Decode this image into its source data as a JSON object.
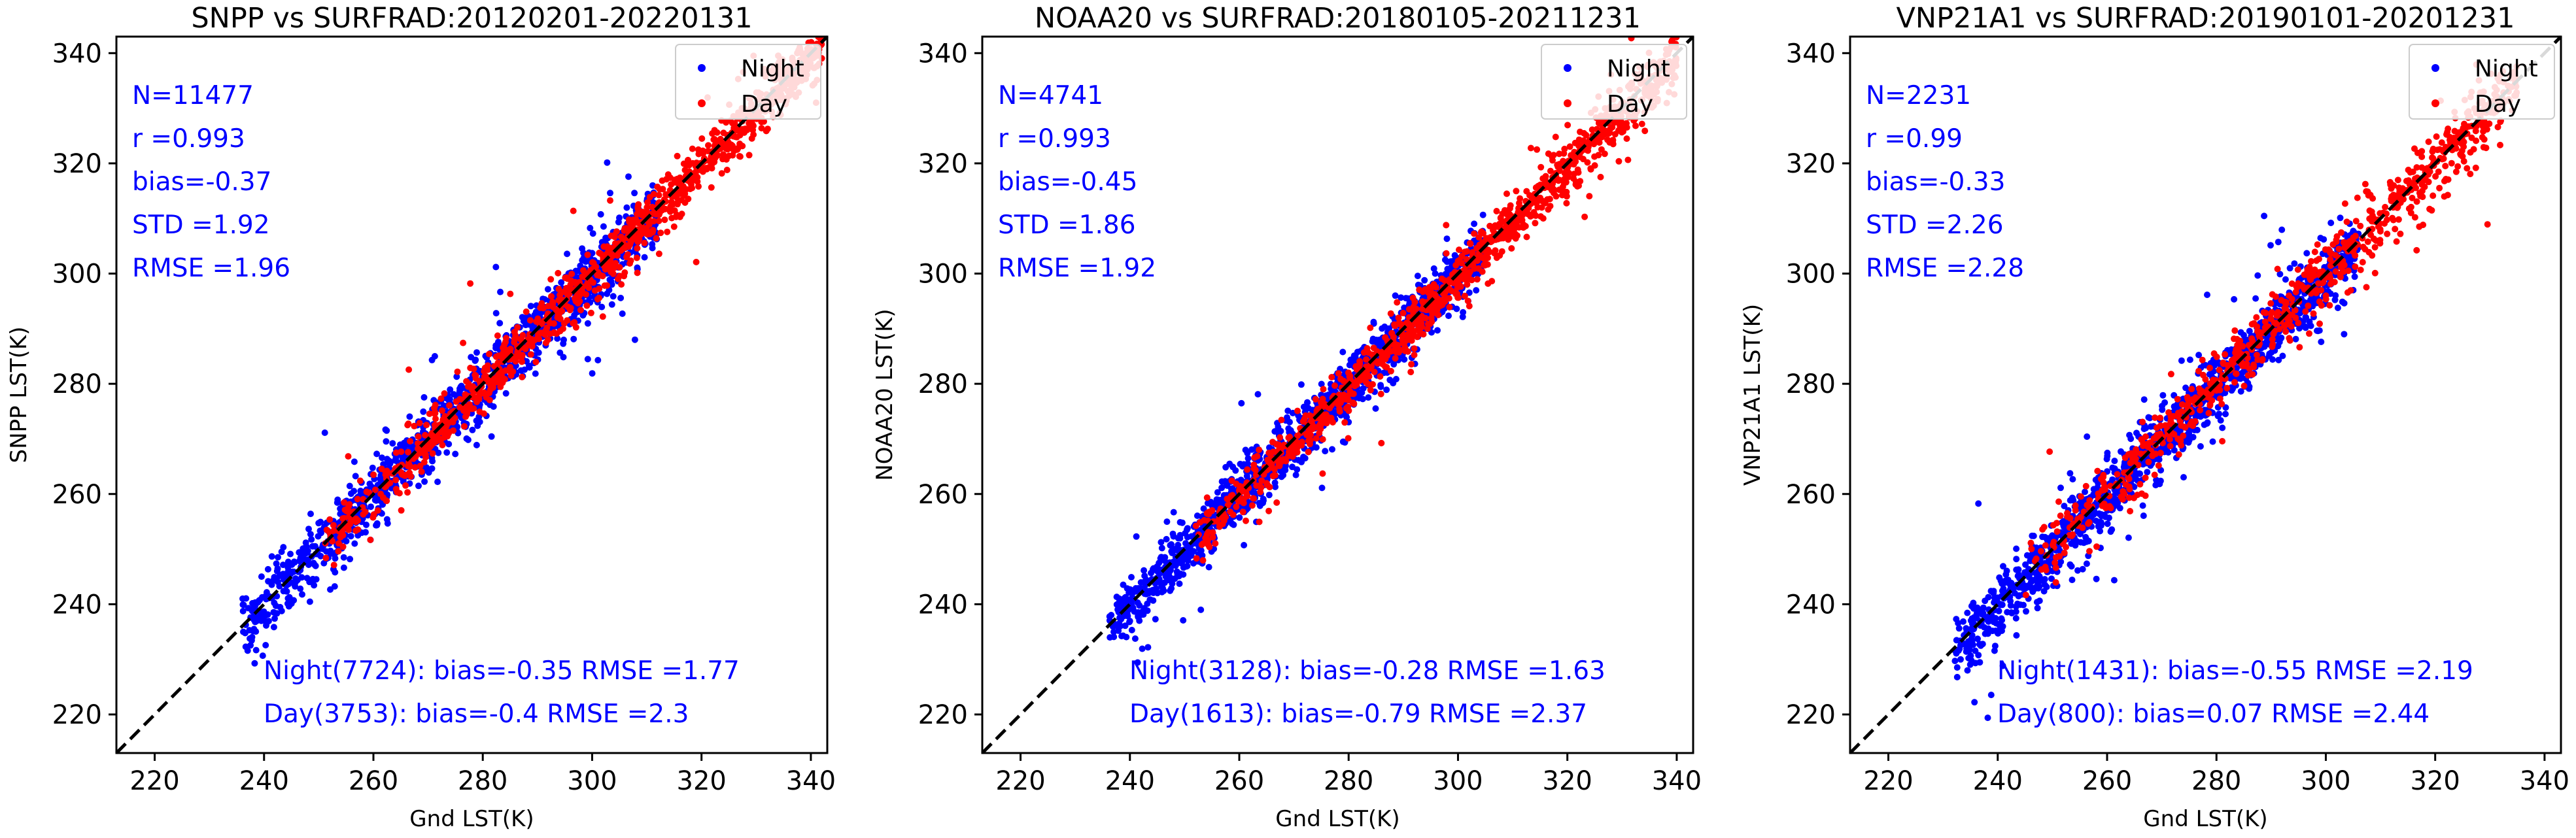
{
  "chart_data": [
    {
      "type": "scatter",
      "title": "SNPP vs SURFRAD:20120201-20220131",
      "xlabel": "Gnd LST(K)",
      "ylabel": "SNPP LST(K)",
      "xlim": [
        213,
        343
      ],
      "ylim": [
        213,
        343
      ],
      "xticks": [
        "220",
        "240",
        "260",
        "280",
        "300",
        "320",
        "340"
      ],
      "yticks": [
        "220",
        "240",
        "260",
        "280",
        "300",
        "320",
        "340"
      ],
      "legend": {
        "position": "top-right",
        "entries": [
          "Night",
          "Day"
        ]
      },
      "stats": [
        "N=11477",
        "r =0.993",
        "bias=-0.37",
        "STD =1.92",
        "RMSE =1.96"
      ],
      "subgroups": [
        "Night(7724): bias=-0.35 RMSE =1.77",
        "Day(3753): bias=-0.4 RMSE =2.3"
      ],
      "series": [
        {
          "name": "Night",
          "n": 7724,
          "bias": -0.35,
          "rmse": 1.77,
          "x_range": [
            236,
            312
          ],
          "spread": 3.2
        },
        {
          "name": "Day",
          "n": 3753,
          "bias": -0.4,
          "rmse": 2.3,
          "x_range": [
            250,
            342
          ],
          "spread": 2.6
        }
      ],
      "reference_line": "1:1"
    },
    {
      "type": "scatter",
      "title": "NOAA20 vs SURFRAD:20180105-20211231",
      "xlabel": "Gnd LST(K)",
      "ylabel": "NOAA20 LST(K)",
      "xlim": [
        213,
        343
      ],
      "ylim": [
        213,
        343
      ],
      "xticks": [
        "220",
        "240",
        "260",
        "280",
        "300",
        "320",
        "340"
      ],
      "yticks": [
        "220",
        "240",
        "260",
        "280",
        "300",
        "320",
        "340"
      ],
      "legend": {
        "position": "top-right",
        "entries": [
          "Night",
          "Day"
        ]
      },
      "stats": [
        "N=4741",
        "r =0.993",
        "bias=-0.45",
        "STD =1.86",
        "RMSE =1.92"
      ],
      "subgroups": [
        "Night(3128): bias=-0.28 RMSE =1.63",
        "Day(1613): bias=-0.79 RMSE =2.37"
      ],
      "series": [
        {
          "name": "Night",
          "n": 3128,
          "bias": -0.28,
          "rmse": 1.63,
          "x_range": [
            236,
            305
          ],
          "spread": 2.8
        },
        {
          "name": "Day",
          "n": 1613,
          "bias": -0.79,
          "rmse": 2.37,
          "x_range": [
            252,
            340
          ],
          "spread": 2.6
        }
      ],
      "reference_line": "1:1"
    },
    {
      "type": "scatter",
      "title": "VNP21A1 vs SURFRAD:20190101-20201231",
      "xlabel": "Gnd LST(K)",
      "ylabel": "VNP21A1 LST(K)",
      "xlim": [
        213,
        343
      ],
      "ylim": [
        213,
        343
      ],
      "xticks": [
        "220",
        "240",
        "260",
        "280",
        "300",
        "320",
        "340"
      ],
      "yticks": [
        "220",
        "240",
        "260",
        "280",
        "300",
        "320",
        "340"
      ],
      "legend": {
        "position": "top-right",
        "entries": [
          "Night",
          "Day"
        ]
      },
      "stats": [
        "N=2231",
        "r =0.99",
        "bias=-0.33",
        "STD =2.26",
        "RMSE =2.28"
      ],
      "subgroups": [
        "Night(1431): bias=-0.55 RMSE =2.19",
        "Day(800): bias=0.07 RMSE =2.44"
      ],
      "series": [
        {
          "name": "Night",
          "n": 1431,
          "bias": -0.55,
          "rmse": 2.19,
          "x_range": [
            232,
            306
          ],
          "spread": 3.3
        },
        {
          "name": "Day",
          "n": 800,
          "bias": 0.07,
          "rmse": 2.44,
          "x_range": [
            245,
            335
          ],
          "spread": 3.2
        }
      ],
      "reference_line": "1:1"
    }
  ],
  "colors": {
    "night": "#0000ff",
    "day": "#ff0000",
    "stats_text": "#0000ff",
    "reference_line": "#000000"
  }
}
